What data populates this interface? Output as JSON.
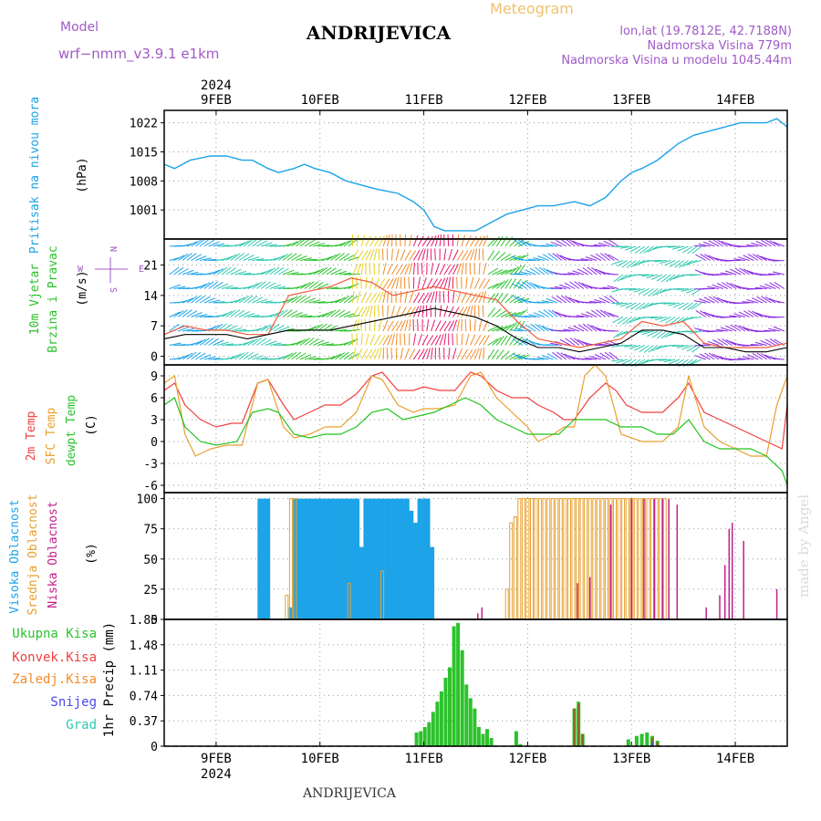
{
  "header": {
    "model_label": "Model",
    "model_name": "wrf−nmm_v3.9.1  e1km",
    "station": "ANDRIJEVICA",
    "product": "Meteogram",
    "lonlat": "lon,lat (19.7812E, 42.7188N)",
    "elevation": "Nadmorska Visina 779m",
    "model_elevation": "Nadmorska Visina u modelu 1045.44m"
  },
  "footer": {
    "station": "ANDRIJEVICA",
    "watermark": "made by Angel"
  },
  "colors": {
    "pressure": "#1ca3e8",
    "gust": "#f25a3c",
    "wind_speed": "#000000",
    "temp2m": "#f04040",
    "sfc_temp": "#e8a030",
    "dewpoint": "#22c322",
    "high_cloud": "#1ca3e8",
    "mid_cloud": "#e8a030",
    "low_cloud": "#c0208a",
    "precip_total": "#2cc22c",
    "precip_conv": "#f04040",
    "precip_frozen": "#f28c28",
    "snow": "#4848e8",
    "graupel": "#30c8b0"
  },
  "chart_data": [
    {
      "type": "line",
      "panel": "pressure",
      "ylabel_lines": [
        "Pritisak na nivou mora",
        "(hPa)"
      ],
      "x_top_year": "2024",
      "x_tick_labels": [
        "9FEB",
        "10FEB",
        "11FEB",
        "12FEB",
        "13FEB",
        "14FEB"
      ],
      "x_days_range": [
        8.5,
        14.5
      ],
      "ylim": [
        994,
        1025
      ],
      "yticks": [
        1001,
        1008,
        1015,
        1022
      ],
      "grid": true,
      "x": [
        8.5,
        8.6,
        8.75,
        8.95,
        9.1,
        9.25,
        9.35,
        9.5,
        9.6,
        9.75,
        9.85,
        9.95,
        10.1,
        10.25,
        10.4,
        10.55,
        10.75,
        10.9,
        11.0,
        11.1,
        11.2,
        11.35,
        11.5,
        11.65,
        11.8,
        11.95,
        12.1,
        12.25,
        12.45,
        12.6,
        12.75,
        12.9,
        13.0,
        13.1,
        13.25,
        13.45,
        13.6,
        13.75,
        13.9,
        14.05,
        14.2,
        14.3,
        14.4,
        14.5
      ],
      "y": [
        1012,
        1011,
        1013,
        1014,
        1014,
        1013,
        1013,
        1011,
        1010,
        1011,
        1012,
        1011,
        1010,
        1008,
        1007,
        1006,
        1005,
        1003,
        1001,
        997,
        996,
        996,
        996,
        998,
        1000,
        1001,
        1002,
        1002,
        1003,
        1002,
        1004,
        1008,
        1010,
        1011,
        1013,
        1017,
        1019,
        1020,
        1021,
        1022,
        1022,
        1022,
        1023,
        1021
      ]
    },
    {
      "type": "line",
      "panel": "wind",
      "ylabel_lines": [
        "10m Vjetar",
        "Brzina i Pravac",
        "(m/s)"
      ],
      "compass": {
        "north": "N",
        "east": "E",
        "south": "S",
        "west": "W"
      },
      "ylim": [
        -2,
        27
      ],
      "yticks": [
        0,
        7,
        14,
        21
      ],
      "grid": true,
      "series": [
        {
          "role": "gust",
          "x": [
            8.5,
            8.7,
            8.9,
            9.1,
            9.3,
            9.5,
            9.7,
            9.9,
            10.1,
            10.3,
            10.5,
            10.7,
            10.9,
            11.1,
            11.3,
            11.5,
            11.7,
            11.9,
            12.1,
            12.3,
            12.5,
            12.7,
            12.9,
            13.1,
            13.3,
            13.5,
            13.7,
            13.9,
            14.1,
            14.3,
            14.5
          ],
          "values": [
            5,
            7,
            6,
            6,
            5,
            5,
            14,
            15,
            16,
            18,
            17,
            14,
            15,
            16,
            15,
            14,
            13,
            8,
            4,
            3,
            2,
            3,
            4,
            8,
            7,
            8,
            3,
            2,
            2,
            2,
            3
          ]
        },
        {
          "role": "speed",
          "x": [
            8.5,
            8.7,
            8.9,
            9.1,
            9.3,
            9.5,
            9.7,
            9.9,
            10.1,
            10.3,
            10.5,
            10.7,
            10.9,
            11.1,
            11.3,
            11.5,
            11.7,
            11.9,
            12.1,
            12.3,
            12.5,
            12.7,
            12.9,
            13.1,
            13.3,
            13.5,
            13.7,
            13.9,
            14.1,
            14.3,
            14.5
          ],
          "values": [
            4,
            5,
            5,
            5,
            4,
            5,
            6,
            6,
            6,
            7,
            8,
            9,
            10,
            11,
            10,
            9,
            7,
            4,
            2,
            2,
            1,
            2,
            3,
            6,
            6,
            5,
            2,
            2,
            1,
            1,
            2
          ]
        }
      ],
      "barb_colors": [
        {
          "x": [
            8.55,
            9.0
          ],
          "color": "#1ca3e8"
        },
        {
          "x": [
            9.0,
            9.6
          ],
          "color": "#30c8b0"
        },
        {
          "x": [
            9.6,
            10.3
          ],
          "color": "#2cc22c"
        },
        {
          "x": [
            10.3,
            10.6
          ],
          "color": "#e8d020"
        },
        {
          "x": [
            10.6,
            10.9
          ],
          "color": "#f28c28"
        },
        {
          "x": [
            10.9,
            11.3
          ],
          "color": "#e8186a"
        },
        {
          "x": [
            11.3,
            11.6
          ],
          "color": "#f28c28"
        },
        {
          "x": [
            11.6,
            11.95
          ],
          "color": "#2cc22c"
        },
        {
          "x": [
            11.95,
            12.3
          ],
          "color": "#1ca3e8"
        },
        {
          "x": [
            12.3,
            12.9
          ],
          "color": "#8a2be2"
        },
        {
          "x": [
            12.9,
            13.7
          ],
          "color": "#30c8b0"
        },
        {
          "x": [
            13.7,
            14.5
          ],
          "color": "#8a2be2"
        }
      ]
    },
    {
      "type": "line",
      "panel": "temperature",
      "ylabel_lines": [
        "2m Temp",
        "SFC Temp",
        "dewpt Temp",
        "(C)"
      ],
      "ylim": [
        -7,
        10.5
      ],
      "yticks": [
        -6,
        -3,
        0,
        3,
        6,
        9
      ],
      "grid": true,
      "series": [
        {
          "role": "2m",
          "x": [
            8.5,
            8.6,
            8.7,
            8.85,
            9.0,
            9.15,
            9.25,
            9.4,
            9.5,
            9.65,
            9.75,
            9.9,
            10.05,
            10.2,
            10.35,
            10.5,
            10.6,
            10.75,
            10.9,
            11.0,
            11.15,
            11.3,
            11.45,
            11.55,
            11.7,
            11.85,
            12.0,
            12.1,
            12.25,
            12.35,
            12.45,
            12.6,
            12.75,
            12.85,
            12.95,
            13.1,
            13.3,
            13.45,
            13.55,
            13.7,
            13.85,
            14.0,
            14.15,
            14.3,
            14.45,
            14.5
          ],
          "values": [
            7,
            8,
            5,
            3,
            2,
            2.5,
            2.5,
            8,
            8.5,
            5,
            3,
            4,
            5,
            5,
            6.5,
            9,
            9.5,
            7,
            7,
            7.5,
            7,
            7,
            9.5,
            9,
            7,
            6,
            6,
            5,
            4,
            3,
            3,
            6,
            8,
            7,
            5,
            4,
            4,
            6,
            8,
            4,
            3,
            2,
            1,
            0,
            -1,
            5
          ]
        },
        {
          "role": "sfc",
          "x": [
            8.5,
            8.6,
            8.7,
            8.8,
            8.95,
            9.1,
            9.25,
            9.4,
            9.5,
            9.65,
            9.75,
            9.9,
            10.05,
            10.2,
            10.35,
            10.5,
            10.6,
            10.75,
            10.9,
            11.0,
            11.15,
            11.3,
            11.45,
            11.55,
            11.7,
            11.85,
            12.0,
            12.1,
            12.25,
            12.35,
            12.45,
            12.55,
            12.65,
            12.75,
            12.9,
            13.1,
            13.3,
            13.45,
            13.55,
            13.7,
            13.85,
            14.0,
            14.15,
            14.3,
            14.4,
            14.5
          ],
          "values": [
            8,
            9,
            1,
            -2,
            -1,
            -0.5,
            -0.5,
            8,
            8.5,
            2,
            0.5,
            1,
            2,
            2,
            4,
            9,
            8.5,
            5,
            4,
            4.5,
            4.5,
            5,
            9,
            9.5,
            6,
            4,
            2,
            0,
            1,
            2,
            2,
            9,
            10.5,
            9,
            1,
            0,
            0,
            2,
            9,
            2,
            0,
            -1,
            -2,
            -2,
            5,
            9
          ]
        },
        {
          "role": "dewpoint",
          "x": [
            8.5,
            8.6,
            8.7,
            8.85,
            9.0,
            9.2,
            9.35,
            9.5,
            9.6,
            9.75,
            9.9,
            10.05,
            10.2,
            10.35,
            10.5,
            10.65,
            10.8,
            10.95,
            11.1,
            11.25,
            11.4,
            11.55,
            11.7,
            11.85,
            12.0,
            12.15,
            12.3,
            12.45,
            12.6,
            12.75,
            12.9,
            13.1,
            13.25,
            13.4,
            13.55,
            13.7,
            13.85,
            14.0,
            14.15,
            14.3,
            14.45,
            14.5
          ],
          "values": [
            5,
            6,
            2,
            0,
            -0.5,
            0,
            4,
            4.5,
            4,
            1,
            0.5,
            1,
            1,
            2,
            4,
            4.5,
            3,
            3.5,
            4,
            5,
            6,
            5,
            3,
            2,
            1,
            1,
            1,
            3,
            3,
            3,
            2,
            2,
            1,
            1,
            3,
            0,
            -1,
            -1,
            -1,
            -2,
            -4,
            -6
          ]
        }
      ]
    },
    {
      "type": "bar",
      "panel": "cloud",
      "ylabel_lines": [
        "Visoka Oblacnost",
        "Srednja Oblacnost",
        "Niska Oblacnost",
        "(%)"
      ],
      "ylim": [
        0,
        105
      ],
      "yticks": [
        0,
        25,
        50,
        75,
        100
      ],
      "grid": true,
      "series": [
        {
          "role": "high",
          "x": [
            9.42,
            9.46,
            9.5,
            9.72,
            9.76,
            9.8,
            9.84,
            9.88,
            9.92,
            9.96,
            10.0,
            10.04,
            10.08,
            10.12,
            10.16,
            10.2,
            10.24,
            10.28,
            10.32,
            10.36,
            10.4,
            10.44,
            10.48,
            10.52,
            10.56,
            10.6,
            10.64,
            10.68,
            10.72,
            10.76,
            10.8,
            10.84,
            10.88,
            10.92,
            10.96,
            11.0,
            11.04,
            11.08
          ],
          "values": [
            100,
            100,
            100,
            10,
            100,
            100,
            100,
            100,
            100,
            100,
            100,
            100,
            100,
            100,
            100,
            100,
            100,
            100,
            100,
            100,
            60,
            100,
            100,
            100,
            100,
            100,
            100,
            100,
            100,
            100,
            100,
            100,
            90,
            80,
            100,
            100,
            100,
            60
          ]
        },
        {
          "role": "mid",
          "x": [
            9.68,
            9.72,
            9.76,
            10.28,
            10.6,
            11.8,
            11.84,
            11.88,
            11.92,
            11.96,
            12.0,
            12.04,
            12.08,
            12.12,
            12.16,
            12.2,
            12.24,
            12.28,
            12.32,
            12.36,
            12.4,
            12.44,
            12.48,
            12.52,
            12.56,
            12.6,
            12.64,
            12.68,
            12.72,
            12.76,
            12.8,
            12.84,
            12.88,
            12.92,
            12.96,
            13.0,
            13.04,
            13.08,
            13.12,
            13.16,
            13.2,
            13.24,
            13.28,
            13.32
          ],
          "values": [
            20,
            100,
            100,
            30,
            40,
            25,
            80,
            85,
            100,
            100,
            100,
            100,
            100,
            100,
            100,
            100,
            100,
            100,
            100,
            100,
            100,
            100,
            100,
            100,
            100,
            100,
            100,
            100,
            100,
            100,
            100,
            100,
            100,
            100,
            100,
            100,
            100,
            100,
            100,
            100,
            100,
            100,
            100,
            100
          ]
        },
        {
          "role": "low",
          "x": [
            11.52,
            11.56,
            12.48,
            12.6,
            12.8,
            13.0,
            13.12,
            13.22,
            13.3,
            13.36,
            13.44,
            13.72,
            13.85,
            13.9,
            13.94,
            13.97,
            14.08,
            14.4
          ],
          "values": [
            5,
            10,
            30,
            35,
            95,
            100,
            100,
            100,
            100,
            100,
            95,
            10,
            20,
            45,
            75,
            80,
            65,
            25
          ]
        }
      ]
    },
    {
      "type": "bar",
      "panel": "precipitation",
      "ylabel": "1hr Precip (mm)",
      "legend": [
        "Ukupna Kisa",
        "Konvek.Kisa",
        "Zaledj.Kisa",
        "Snijeg",
        "Grad"
      ],
      "x_bottom_year": "2024",
      "ylim": [
        0,
        1.85
      ],
      "yticks": [
        0,
        0.37,
        0.74,
        1.11,
        1.48,
        1.85
      ],
      "grid": true,
      "series": [
        {
          "role": "total",
          "x": [
            10.93,
            10.97,
            11.01,
            11.05,
            11.09,
            11.13,
            11.17,
            11.21,
            11.25,
            11.29,
            11.33,
            11.37,
            11.41,
            11.45,
            11.49,
            11.53,
            11.57,
            11.61,
            11.65,
            11.89,
            11.93,
            12.45,
            12.49,
            12.53,
            12.97,
            13.05,
            13.1,
            13.15,
            13.2,
            13.25
          ],
          "values": [
            0.2,
            0.22,
            0.28,
            0.35,
            0.5,
            0.65,
            0.8,
            1.0,
            1.15,
            1.75,
            1.8,
            1.4,
            0.9,
            0.7,
            0.55,
            0.28,
            0.18,
            0.25,
            0.12,
            0.22,
            0.03,
            0.55,
            0.65,
            0.18,
            0.1,
            0.15,
            0.18,
            0.2,
            0.15,
            0.08
          ]
        },
        {
          "role": "frozen",
          "x": [
            12.45,
            12.49,
            12.53,
            13.2,
            13.25
          ],
          "values": [
            0.55,
            0.62,
            0.18,
            0.12,
            0.06
          ]
        },
        {
          "role": "snow",
          "x": [
            13.2
          ],
          "values": [
            0.05
          ]
        }
      ]
    }
  ]
}
